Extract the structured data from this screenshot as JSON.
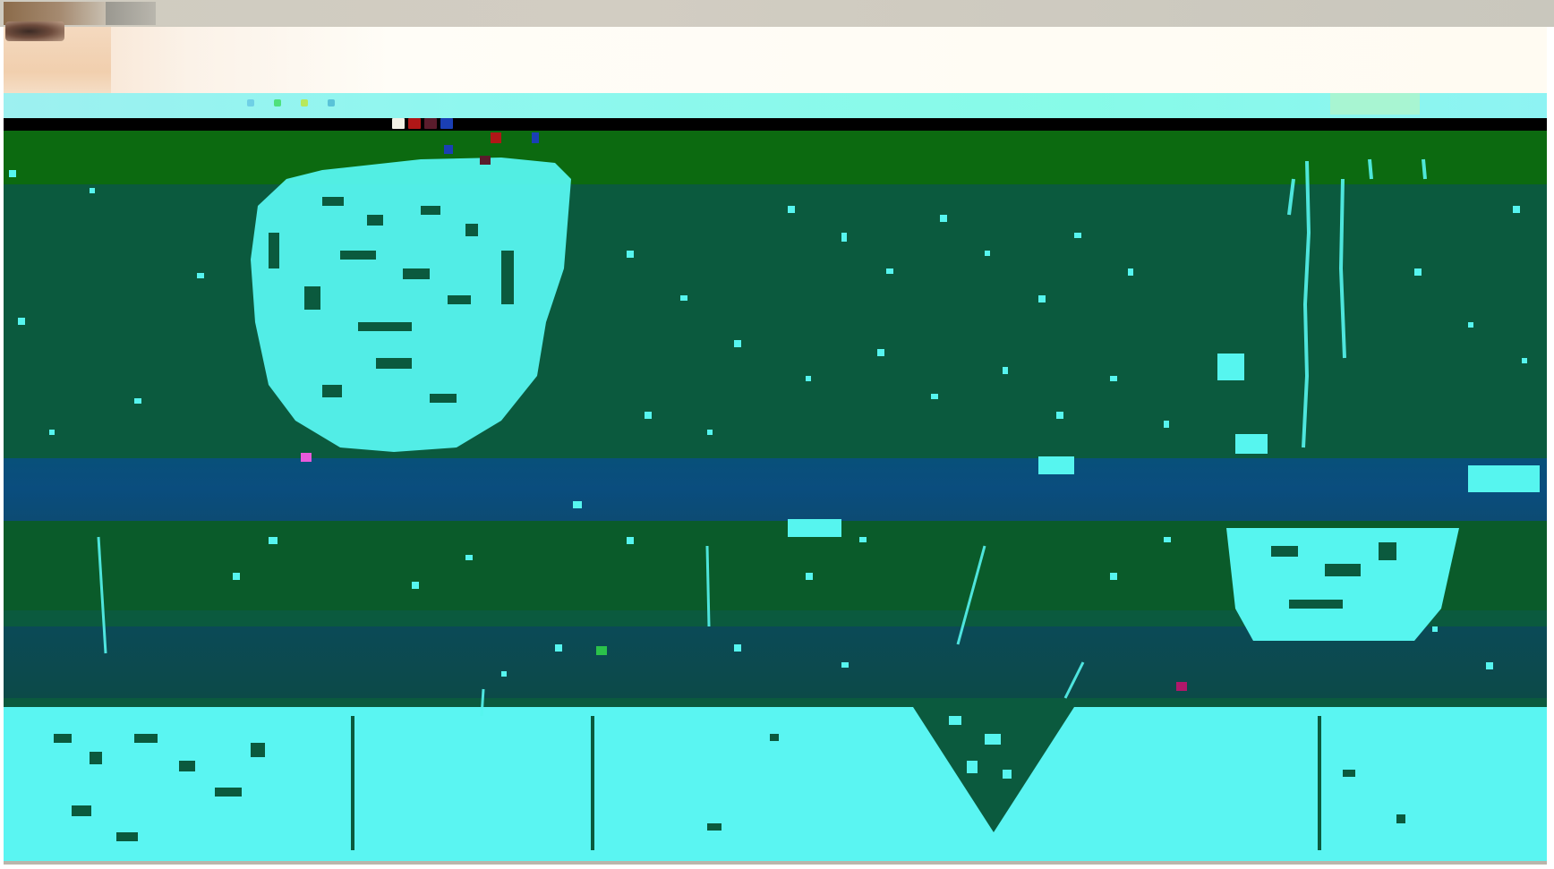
{
  "window": {
    "title": ""
  },
  "colors": {
    "cream": "#fffbf2",
    "cyan": "#5af5f2",
    "canvas_green": "#0b5a3e",
    "band_blue": "#0a4d7e",
    "dark_green": "#0c6a10",
    "black": "#000000"
  },
  "icons": {
    "avatar": "avatar-thumbnail",
    "image": "image-thumbnail"
  }
}
